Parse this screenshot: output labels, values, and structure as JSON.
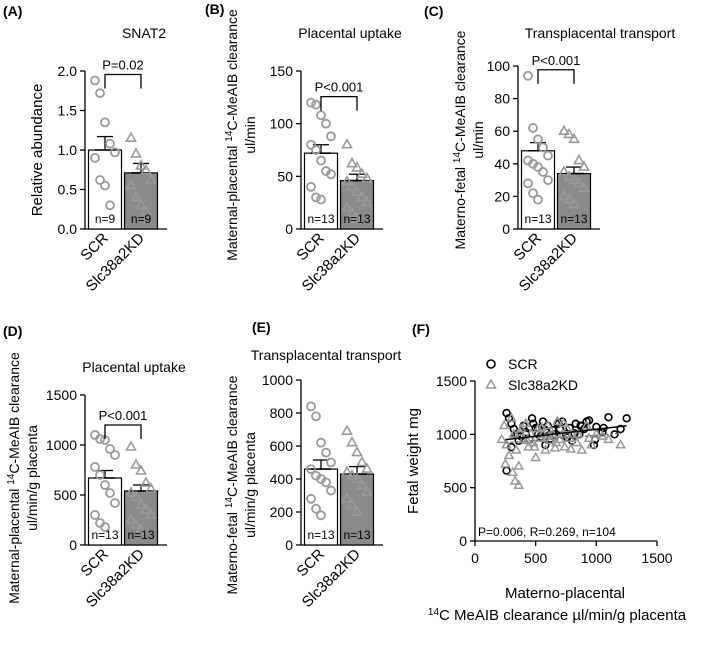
{
  "chart_data": [
    {
      "type": "bar",
      "panel": "(A)",
      "title": "SNAT2",
      "ylabel": "Relative abundance",
      "ylim": [
        0,
        2.0
      ],
      "yticks": [
        "0.0",
        "0.5",
        "1.0",
        "1.5",
        "2.0"
      ],
      "categories": [
        "SCR",
        "Slc38a2KD"
      ],
      "values": [
        1.0,
        0.71
      ],
      "sem": [
        0.17,
        0.12
      ],
      "n_labels": [
        "n=9",
        "n=9"
      ],
      "pvalue": "P=0.02",
      "points": [
        [
          1.88,
          1.72,
          1.35,
          1.08,
          0.97,
          0.9,
          0.62,
          0.55,
          0.3
        ],
        [
          1.15,
          0.95,
          0.8,
          0.74,
          0.62,
          0.55,
          0.4,
          0.3,
          0.22
        ]
      ]
    },
    {
      "type": "bar",
      "panel": "(B)",
      "title": "Placental uptake",
      "ylabel_line1": "Maternal-placental ",
      "ylabel_sup": "14",
      "ylabel_line1b": "C-MeAIB clearance",
      "ylabel_line2": "ul/min",
      "ylim": [
        0,
        150
      ],
      "yticks": [
        "0",
        "50",
        "100",
        "150"
      ],
      "categories": [
        "SCR",
        "Slc38a2KD"
      ],
      "values": [
        72,
        46
      ],
      "sem": [
        8,
        6
      ],
      "n_labels": [
        "n=13",
        "n=13"
      ],
      "pvalue": "P<0.001",
      "points": [
        [
          120,
          118,
          108,
          100,
          88,
          80,
          75,
          65,
          55,
          52,
          40,
          30,
          28
        ],
        [
          80,
          62,
          58,
          52,
          48,
          45,
          40,
          35,
          30,
          25,
          20,
          15,
          10
        ]
      ]
    },
    {
      "type": "bar",
      "panel": "(C)",
      "title": "Transplacental transport",
      "ylabel_line1": "Materno-fetal ",
      "ylabel_sup": "14",
      "ylabel_line1b": "C-MeAIB clearance",
      "ylabel_line2": "ul/min",
      "ylim": [
        0,
        100
      ],
      "yticks": [
        "0",
        "20",
        "40",
        "60",
        "80",
        "100"
      ],
      "categories": [
        "SCR",
        "Slc38a2KD"
      ],
      "values": [
        48,
        34
      ],
      "sem": [
        5,
        4
      ],
      "n_labels": [
        "n=13",
        "n=13"
      ],
      "pvalue": "P<0.001",
      "points": [
        [
          94,
          62,
          55,
          50,
          45,
          42,
          40,
          38,
          35,
          30,
          28,
          22,
          18
        ],
        [
          60,
          58,
          55,
          42,
          38,
          35,
          32,
          30,
          28,
          25,
          20,
          18,
          15
        ]
      ]
    },
    {
      "type": "bar",
      "panel": "(D)",
      "title": "Placental uptake",
      "ylabel_line1": "Maternal-placental ",
      "ylabel_sup": "14",
      "ylabel_line1b": "C-MeAIB clearance",
      "ylabel_line2": "ul/min/g placenta",
      "ylim": [
        0,
        1500
      ],
      "yticks": [
        "0",
        "500",
        "1000",
        "1500"
      ],
      "categories": [
        "SCR",
        "Slc38a2KD"
      ],
      "values": [
        670,
        540
      ],
      "sem": [
        75,
        60
      ],
      "n_labels": [
        "n=13",
        "n=13"
      ],
      "pvalue": "P<0.001",
      "points": [
        [
          1100,
          1060,
          1050,
          960,
          900,
          780,
          700,
          600,
          520,
          420,
          300,
          220,
          180
        ],
        [
          980,
          800,
          740,
          620,
          560,
          520,
          480,
          400,
          350,
          300,
          250,
          200,
          150
        ]
      ]
    },
    {
      "type": "bar",
      "panel": "(E)",
      "title": "Transplacental transport",
      "ylabel_line1": "Materno-fetal ",
      "ylabel_sup": "14",
      "ylabel_line1b": "C-MeAIB clearance",
      "ylabel_line2": "ul/min/g placenta",
      "ylim": [
        0,
        1000
      ],
      "yticks": [
        "0",
        "200",
        "400",
        "600",
        "800",
        "1000"
      ],
      "categories": [
        "SCR",
        "Slc38a2KD"
      ],
      "values": [
        460,
        430
      ],
      "sem": [
        55,
        45
      ],
      "n_labels": [
        "n=13",
        "n=13"
      ],
      "pvalue": "",
      "points": [
        [
          840,
          780,
          620,
          560,
          500,
          460,
          420,
          400,
          380,
          330,
          280,
          220,
          180
        ],
        [
          690,
          620,
          560,
          500,
          460,
          440,
          420,
          400,
          360,
          320,
          280,
          240,
          200
        ]
      ]
    },
    {
      "type": "scatter",
      "panel": "(F)",
      "ylabel": "Fetal weight mg",
      "xlabel_line1": "Materno-placental",
      "xlabel_sup": "14",
      "xlabel_line2": "C MeAIB clearance µl/min/g placenta",
      "xlim": [
        0,
        1500
      ],
      "ylim": [
        0,
        1500
      ],
      "xticks": [
        "0",
        "500",
        "1000",
        "1500"
      ],
      "yticks": [
        "0",
        "500",
        "1000",
        "1500"
      ],
      "annotation": "P=0.006, R=0.269, n=104",
      "legend": [
        "SCR",
        "Slc38a2KD"
      ],
      "fit_scr": [
        [
          250,
          950
        ],
        [
          1250,
          1080
        ]
      ],
      "fit_kd": [
        [
          250,
          920
        ],
        [
          1200,
          1010
        ]
      ],
      "series": [
        {
          "name": "SCR",
          "marker": "circle",
          "x": [
            260,
            280,
            300,
            320,
            350,
            380,
            400,
            420,
            450,
            480,
            500,
            520,
            540,
            560,
            580,
            600,
            620,
            650,
            680,
            700,
            720,
            750,
            780,
            800,
            830,
            860,
            880,
            900,
            940,
            980,
            1000,
            1050,
            1100,
            1150,
            1200,
            1250,
            300,
            360,
            420,
            470,
            520,
            580,
            640,
            690,
            760,
            820,
            870,
            920,
            990,
            1060,
            260,
            330
          ],
          "y": [
            1200,
            1150,
            1100,
            1050,
            1000,
            980,
            1080,
            1020,
            950,
            1100,
            1060,
            1000,
            980,
            1120,
            1040,
            1080,
            960,
            1000,
            1100,
            1050,
            1120,
            1000,
            1060,
            940,
            1100,
            1000,
            1080,
            1050,
            1130,
            900,
            1070,
            1020,
            1160,
            1000,
            1050,
            1150,
            880,
            940,
            1000,
            1150,
            1060,
            900,
            1040,
            1100,
            970,
            1010,
            1080,
            1120,
            950,
            1060,
            660,
            1000
          ]
        },
        {
          "name": "Slc38a2KD",
          "marker": "triangle",
          "x": [
            220,
            240,
            260,
            280,
            300,
            320,
            340,
            360,
            380,
            400,
            420,
            440,
            460,
            480,
            500,
            520,
            540,
            560,
            580,
            600,
            620,
            640,
            660,
            680,
            700,
            720,
            740,
            760,
            780,
            800,
            840,
            880,
            920,
            960,
            1000,
            1050,
            1100,
            1200,
            250,
            310,
            370,
            430,
            490,
            550,
            610,
            670,
            730,
            790,
            850,
            940,
            330,
            360
          ],
          "y": [
            950,
            1080,
            900,
            800,
            1150,
            1000,
            850,
            700,
            1050,
            950,
            1100,
            880,
            1000,
            920,
            780,
            1050,
            960,
            1000,
            850,
            1080,
            940,
            1000,
            870,
            1120,
            950,
            1000,
            880,
            1050,
            960,
            1000,
            920,
            850,
            1080,
            900,
            1000,
            980,
            950,
            900,
            720,
            640,
            1020,
            940,
            880,
            1060,
            980,
            920,
            1100,
            860,
            1000,
            960,
            560,
            520
          ]
        }
      ]
    }
  ]
}
